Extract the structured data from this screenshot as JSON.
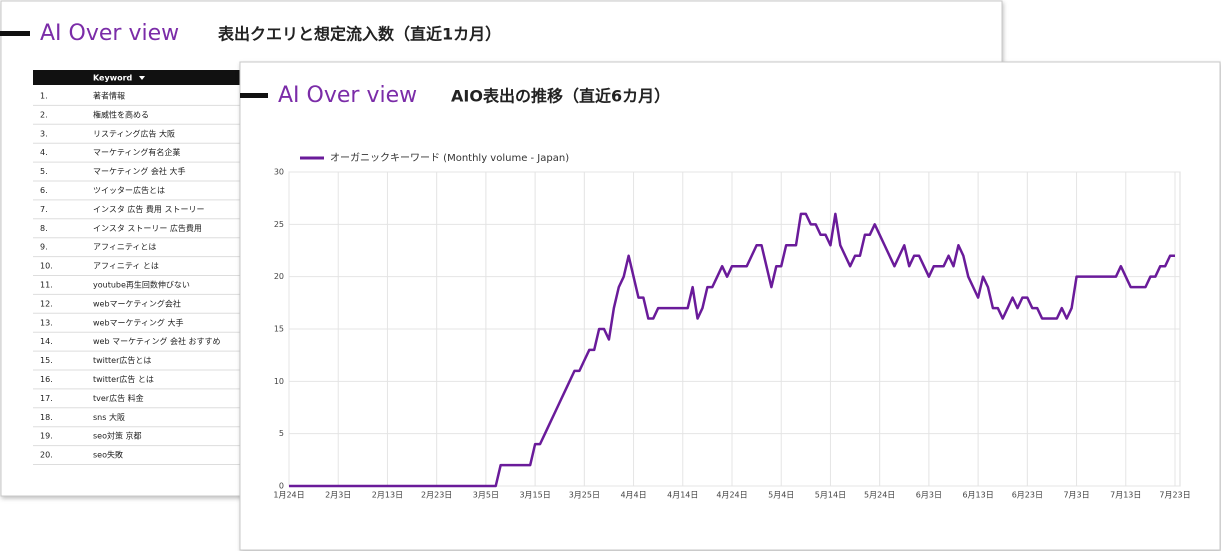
{
  "back_card": {
    "title": "AI Over view",
    "subtitle": "表出クエリと想定流入数（直近1カ月）",
    "table": {
      "header": "Keyword",
      "rows": [
        [
          "1.",
          "著者情報"
        ],
        [
          "2.",
          "権威性を高める"
        ],
        [
          "3.",
          "リスティング広告 大阪"
        ],
        [
          "4.",
          "マーケティング有名企業"
        ],
        [
          "5.",
          "マーケティング 会社 大手"
        ],
        [
          "6.",
          "ツイッター広告とは"
        ],
        [
          "7.",
          "インスタ 広告 費用 ストーリー"
        ],
        [
          "8.",
          "インスタ ストーリー 広告費用"
        ],
        [
          "9.",
          "アフィニティとは"
        ],
        [
          "10.",
          "アフィニティ とは"
        ],
        [
          "11.",
          "youtube再生回数伸びない"
        ],
        [
          "12.",
          "webマーケティング会社"
        ],
        [
          "13.",
          "webマーケティング 大手"
        ],
        [
          "14.",
          "web マーケティング 会社 おすすめ"
        ],
        [
          "15.",
          "twitter広告とは"
        ],
        [
          "16.",
          "twitter広告 とは"
        ],
        [
          "17.",
          "tver広告 料金"
        ],
        [
          "18.",
          "sns 大阪"
        ],
        [
          "19.",
          "seo対策 京都"
        ],
        [
          "20.",
          "seo失敗"
        ]
      ]
    }
  },
  "chart_data": {
    "type": "line",
    "title": "AI Over view",
    "subtitle": "AIO表出の推移（直近6カ月）",
    "categories": [
      "1月24日",
      null,
      null,
      null,
      null,
      null,
      null,
      null,
      null,
      null,
      "2月3日",
      null,
      null,
      null,
      null,
      null,
      null,
      null,
      null,
      null,
      "2月13日",
      null,
      null,
      null,
      null,
      null,
      null,
      null,
      null,
      null,
      "2月23日",
      null,
      null,
      null,
      null,
      null,
      null,
      null,
      null,
      null,
      "3月5日",
      null,
      null,
      null,
      null,
      null,
      null,
      null,
      null,
      null,
      "3月15日",
      null,
      null,
      null,
      null,
      null,
      null,
      null,
      null,
      null,
      "3月25日",
      null,
      null,
      null,
      null,
      null,
      null,
      null,
      null,
      null,
      "4月4日",
      null,
      null,
      null,
      null,
      null,
      null,
      null,
      null,
      null,
      "4月14日",
      null,
      null,
      null,
      null,
      null,
      null,
      null,
      null,
      null,
      "4月24日",
      null,
      null,
      null,
      null,
      null,
      null,
      null,
      null,
      null,
      "5月4日",
      null,
      null,
      null,
      null,
      null,
      null,
      null,
      null,
      null,
      "5月14日",
      null,
      null,
      null,
      null,
      null,
      null,
      null,
      null,
      null,
      "5月24日",
      null,
      null,
      null,
      null,
      null,
      null,
      null,
      null,
      null,
      "6月3日",
      null,
      null,
      null,
      null,
      null,
      null,
      null,
      null,
      null,
      "6月13日",
      null,
      null,
      null,
      null,
      null,
      null,
      null,
      null,
      null,
      "6月23日",
      null,
      null,
      null,
      null,
      null,
      null,
      null,
      null,
      null,
      "7月3日",
      null,
      null,
      null,
      null,
      null,
      null,
      null,
      null,
      null,
      "7月13日",
      null,
      null,
      null,
      null,
      null,
      null,
      null,
      null,
      null,
      "7月23日"
    ],
    "series": [
      {
        "name": "オーガニックキーワード (Monthly volume - Japan)",
        "color": "#6a1b9a",
        "values": [
          0,
          0,
          0,
          0,
          0,
          0,
          0,
          0,
          0,
          0,
          0,
          0,
          0,
          0,
          0,
          0,
          0,
          0,
          0,
          0,
          0,
          0,
          0,
          0,
          0,
          0,
          0,
          0,
          0,
          0,
          0,
          0,
          0,
          0,
          0,
          0,
          0,
          0,
          0,
          0,
          0,
          0,
          0,
          2,
          2,
          2,
          2,
          2,
          2,
          2,
          4,
          4,
          5,
          6,
          7,
          8,
          9,
          10,
          11,
          11,
          12,
          13,
          13,
          15,
          15,
          14,
          17,
          19,
          20,
          22,
          20,
          18,
          18,
          16,
          16,
          17,
          17,
          17,
          17,
          17,
          17,
          17,
          19,
          16,
          17,
          19,
          19,
          20,
          21,
          20,
          21,
          21,
          21,
          21,
          22,
          23,
          23,
          21,
          19,
          21,
          21,
          23,
          23,
          23,
          26,
          26,
          25,
          25,
          24,
          24,
          23,
          26,
          23,
          22,
          21,
          22,
          22,
          24,
          24,
          25,
          24,
          23,
          22,
          21,
          22,
          23,
          21,
          22,
          22,
          21,
          20,
          21,
          21,
          21,
          22,
          21,
          23,
          22,
          20,
          19,
          18,
          20,
          19,
          17,
          17,
          16,
          17,
          18,
          17,
          18,
          18,
          17,
          17,
          16,
          16,
          16,
          16,
          17,
          16,
          17,
          20,
          20,
          20,
          20,
          20,
          20,
          20,
          20,
          20,
          21,
          20,
          19,
          19,
          19,
          19,
          20,
          20,
          21,
          21,
          22,
          22
        ]
      }
    ],
    "ylim": [
      0,
      30
    ],
    "yticks": [
      0,
      5,
      10,
      15,
      20,
      25,
      30
    ],
    "grid": true
  }
}
